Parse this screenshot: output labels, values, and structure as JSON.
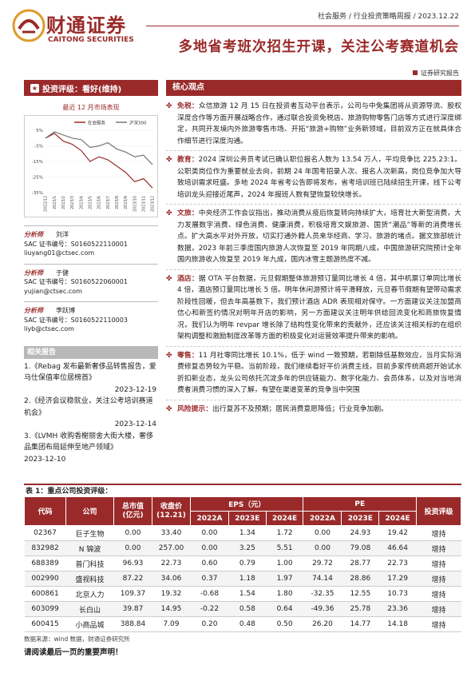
{
  "brand": {
    "name_cn": "财通证券",
    "name_en": "CAITONG SECURITIES",
    "color": "#9a2a2a"
  },
  "header": {
    "meta": "社会服务 / 行业投资策略周报 / 2023.12.22",
    "title": "多地省考班次招生开课，关注公考赛道机会",
    "report_type": "证券研究报告"
  },
  "left": {
    "rating": "投资评级：看好(维持)",
    "chart_title": "最近 12 月市场表现",
    "analysts": [
      {
        "role": "分析师",
        "name": "刘洋",
        "sac": "SAC 证书编号：S0160522110001",
        "email": "liuyang01@ctsec.com"
      },
      {
        "role": "分析师",
        "name": "于健",
        "sac": "SAC 证书编号：S0160522060001",
        "email": "yujian@ctsec.com"
      },
      {
        "role": "分析师",
        "name": "李跃博",
        "sac": "SAC 证书编号：S0160522110003",
        "email": "liyb@ctsec.com"
      }
    ],
    "related_head": "相关报告",
    "related": [
      {
        "text": "1.《Rebag 发布最新奢侈品转售报告，爱马仕保值率位居榜首》",
        "date": "2023-12-19"
      },
      {
        "text": "2.《经济会议稳就业，关注公考培训赛道机会》",
        "date": "2023-12-14"
      },
      {
        "text": "3.《LVMH 收购香榭丽舍大街大楼，奢侈品集团布局延伸至地产领域》",
        "date": "2023-12-10"
      }
    ]
  },
  "chart_data": {
    "type": "line",
    "title": "",
    "legend": [
      "社会服务",
      "沪深300"
    ],
    "x": [
      "2022/12",
      "2023/1",
      "2023/2",
      "2023/3",
      "2023/4",
      "2023/5",
      "2023/6",
      "2023/7",
      "2023/8",
      "2023/9",
      "2023/10",
      "2023/11",
      "2023/12"
    ],
    "ylim": [
      -35,
      5
    ],
    "yticks": [
      "5%",
      "-5%",
      "-15%",
      "-25%",
      "-35%"
    ],
    "series": [
      {
        "name": "社会服务",
        "values": [
          0,
          3,
          -2,
          -4,
          -8,
          -15,
          -12,
          -14,
          -18,
          -22,
          -28,
          -26,
          -32
        ],
        "color": "#9a2a2a"
      },
      {
        "name": "沪深300",
        "values": [
          0,
          4,
          2,
          0,
          -1,
          -6,
          -5,
          -3,
          -7,
          -9,
          -12,
          -11,
          -17
        ],
        "color": "#777777"
      }
    ]
  },
  "right": {
    "head": "核心观点",
    "points": [
      {
        "tag": "免税：",
        "text": "众信旅游 12 月 15 日在投资者互动平台表示，公司与中免集团将从资源导流、股权深度合作等方面开展战略合作，通过联合投资免税店、旅游购物零售门店等方式进行深度绑定，共同开发境内外旅游零售市场、开拓“旅游+购物”业务新领域，目前双方正在就具体合作细节进行深度沟通。"
      },
      {
        "tag": "教育：",
        "text": "2024 深圳公务员考试已确认职位报名人数为 13.54 万人，平均竞争比 225.23:1。公职类岗位作为重要就业去向，前期 24 年国考招录人次、报名人次新高，岗位竞争加大导致培训需求旺盛。多地 2024 年省考公告即将发布，省考培训班已陆续招生开课，线下公考培训龙头迎接近尾声，2024 年报班人数有望恢复较快增长。"
      },
      {
        "tag": "文旅：",
        "text": "中央经济工作会议指出，推动消费从疫后恢复转向持续扩大，培育壮大新型消费，大力发展数字消费、绿色消费、健康消费，积极培育文娱旅游、国货“潮品”等新的消费增长点。扩大高水平对外开放，切实打通外籍人员来华经商、学习、旅游的堵点。据文旅部统计数据，2023 年前三季度国内旅游人次恢复至 2019 年同期八成，中国旅游研究院预计全年国内旅游收入恢复至 2019 年九成，国内冰雪主题游热度不减。"
      },
      {
        "tag": "酒店：",
        "text": "据 OTA 平台数据，元旦假期整体旅游预订量同比增长 4 倍，其中机票订单同比增长 4 倍，酒店预订量同比增长 5 倍。明年休闲游预计将平滑释放，元旦春节假期有望带动需求阶段性回暖，但去年高基数下，我们预计酒店 ADR 表现相对保守。一方面建议关注加盟商信心和新签约情况对明年开店的影响，另一方面建议关注明年供给回流变化和商旅恢复情况，我们认为明年 revpar 增长除了结构性变化带来的贡献外，还应该关注相关标的在组织架构调整和激励制度改革等方面的积极变化对运营效率提升带来的影响。"
      },
      {
        "tag": "零售：",
        "text": "11 月社零同比增长 10.1%，低于 wind 一致预期，若剔除低基数效应，当月实际消费修复态势较为平稳。当前阶段，我们继续看好平价消费主线，目前多家传统商超开始试水折扣新业态，龙头公司依托沉淀多年的供应链能力、数字化能力、会员体系，以及对当地消费者消费习惯的深入了解，有望在渠道变革的竞争当中突围"
      },
      {
        "tag": "风险提示：",
        "text": "出行复苏不及预期；居民消费意愿降低；行业竞争加剧。"
      }
    ]
  },
  "table": {
    "title": "表 1：重点公司投资评级：",
    "headers": {
      "code": "代码",
      "company": "公司",
      "mcap": "总市值\n(亿元)",
      "price": "收盘价\n(12.21)",
      "eps": "EPS（元）",
      "pe": "PE",
      "rating": "投资评级",
      "y1": "2022A",
      "y2": "2023E",
      "y3": "2024E"
    },
    "rows": [
      [
        "02367",
        "巨子生物",
        "0.00",
        "33.40",
        "0.00",
        "1.34",
        "1.72",
        "0.00",
        "24.93",
        "19.42",
        "增持"
      ],
      [
        "832982",
        "N 锦波",
        "0.00",
        "257.00",
        "0.00",
        "3.25",
        "5.51",
        "0.00",
        "79.08",
        "46.64",
        "增持"
      ],
      [
        "688389",
        "普门科技",
        "96.93",
        "22.73",
        "0.60",
        "0.79",
        "1.00",
        "29.72",
        "28.77",
        "22.73",
        "增持"
      ],
      [
        "002990",
        "盛视科技",
        "87.22",
        "34.06",
        "0.37",
        "1.18",
        "1.97",
        "74.14",
        "28.86",
        "17.29",
        "增持"
      ],
      [
        "600861",
        "北京人力",
        "109.37",
        "19.32",
        "-0.68",
        "1.54",
        "1.80",
        "-32.35",
        "12.55",
        "10.73",
        "增持"
      ],
      [
        "603099",
        "长白山",
        "39.87",
        "14.95",
        "-0.22",
        "0.58",
        "0.64",
        "-49.36",
        "25.78",
        "23.36",
        "增持"
      ],
      [
        "600415",
        "小商品城",
        "388.84",
        "7.09",
        "0.20",
        "0.48",
        "0.50",
        "26.20",
        "14.77",
        "14.18",
        "增持"
      ]
    ],
    "source": "数据来源：wind 数据，财通证券研究所"
  },
  "footer": "请阅读最后一页的重要声明！"
}
